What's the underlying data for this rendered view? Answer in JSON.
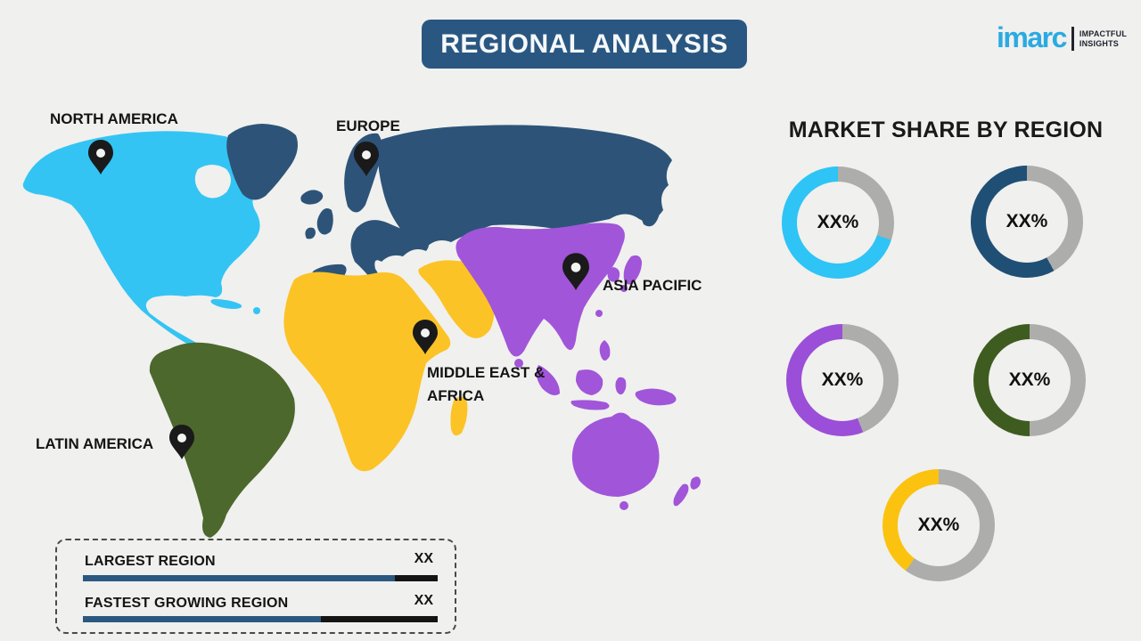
{
  "header": {
    "title": "REGIONAL ANALYSIS",
    "banner_color": "#2A5781"
  },
  "logo": {
    "name": "imarc",
    "tagline_line1": "IMPACTFUL",
    "tagline_line2": "INSIGHTS",
    "brand_color": "#2BAAE2"
  },
  "map": {
    "labels": {
      "north_america": "NORTH AMERICA",
      "europe": "EUROPE",
      "asia_pacific": "ASIA PACIFIC",
      "middle_east_africa_line1": "MIDDLE EAST &",
      "middle_east_africa_line2": "AFRICA",
      "latin_america": "LATIN AMERICA"
    },
    "region_colors": {
      "north_america": "#33C4F4",
      "europe": "#2D5478",
      "asia_pacific": "#A155D9",
      "middle_east_africa": "#FCC327",
      "latin_america": "#4C682C"
    }
  },
  "market_share": {
    "title": "MARKET SHARE BY REGION"
  },
  "chart_data": {
    "type": "donut-set",
    "title": "MARKET SHARE BY REGION",
    "note": "percent values shown as placeholder XX%",
    "donuts": [
      {
        "region": "North America",
        "label": "XX%",
        "arc_percent": 70,
        "color": "#2EC4F5",
        "track_color": "#ADADAB"
      },
      {
        "region": "Europe",
        "label": "XX%",
        "arc_percent": 58,
        "color": "#204F76",
        "track_color": "#ADADAB"
      },
      {
        "region": "Asia Pacific",
        "label": "XX%",
        "arc_percent": 56,
        "color": "#9B4ED7",
        "track_color": "#ADADAB"
      },
      {
        "region": "Latin America",
        "label": "XX%",
        "arc_percent": 50,
        "color": "#3F5C20",
        "track_color": "#ADADAB"
      },
      {
        "region": "Middle East & Africa",
        "label": "XX%",
        "arc_percent": 40,
        "color": "#FBC30F",
        "track_color": "#ADADAB"
      }
    ]
  },
  "legend": {
    "rows": [
      {
        "label": "LARGEST REGION",
        "value": "XX",
        "fill_percent": 88
      },
      {
        "label": "FASTEST GROWING REGION",
        "value": "XX",
        "fill_percent": 67
      }
    ],
    "bar_color": "#2B5880",
    "bar_track_color": "#141414"
  }
}
